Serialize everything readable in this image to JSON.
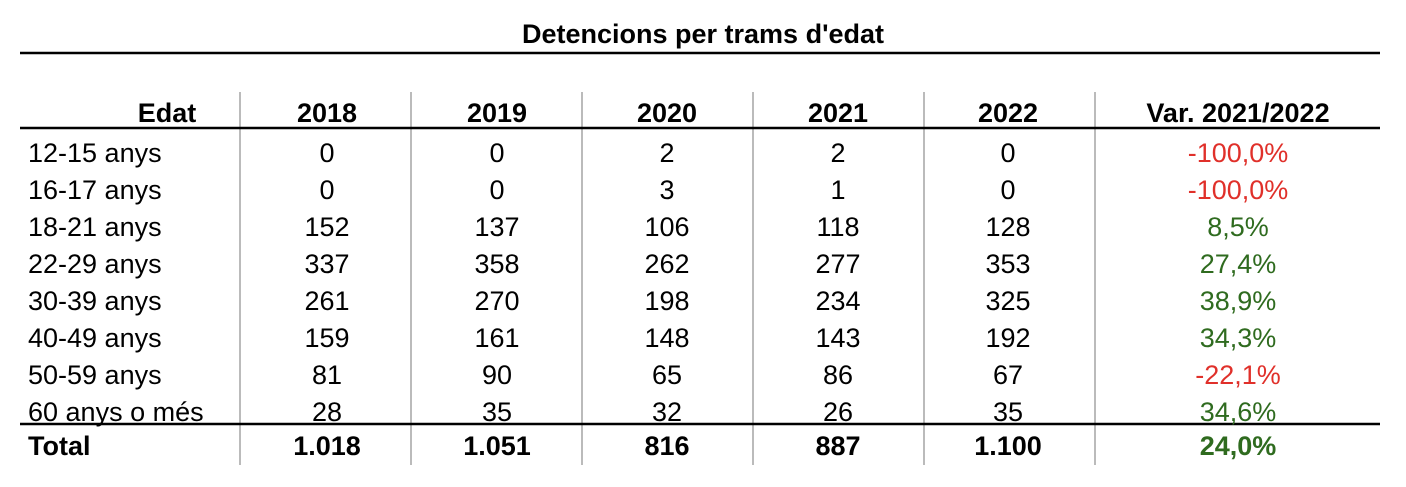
{
  "chart_data": {
    "type": "table",
    "title": "Detencions per trams d'edat",
    "columns": [
      "Edat",
      "2018",
      "2019",
      "2020",
      "2021",
      "2022",
      "Var. 2021/2022"
    ],
    "rows": [
      {
        "label": "12-15 anys",
        "values": [
          "0",
          "0",
          "2",
          "2",
          "0"
        ],
        "var": "-100,0%",
        "trend": "neg"
      },
      {
        "label": "16-17 anys",
        "values": [
          "0",
          "0",
          "3",
          "1",
          "0"
        ],
        "var": "-100,0%",
        "trend": "neg"
      },
      {
        "label": "18-21 anys",
        "values": [
          "152",
          "137",
          "106",
          "118",
          "128"
        ],
        "var": "8,5%",
        "trend": "pos"
      },
      {
        "label": "22-29 anys",
        "values": [
          "337",
          "358",
          "262",
          "277",
          "353"
        ],
        "var": "27,4%",
        "trend": "pos"
      },
      {
        "label": "30-39 anys",
        "values": [
          "261",
          "270",
          "198",
          "234",
          "325"
        ],
        "var": "38,9%",
        "trend": "pos"
      },
      {
        "label": "40-49 anys",
        "values": [
          "159",
          "161",
          "148",
          "143",
          "192"
        ],
        "var": "34,3%",
        "trend": "pos"
      },
      {
        "label": "50-59 anys",
        "values": [
          "81",
          "90",
          "65",
          "86",
          "67"
        ],
        "var": "-22,1%",
        "trend": "neg"
      },
      {
        "label": "60 anys o més",
        "values": [
          "28",
          "35",
          "32",
          "26",
          "35"
        ],
        "var": "34,6%",
        "trend": "pos"
      }
    ],
    "total": {
      "label": "Total",
      "values": [
        "1.018",
        "1.051",
        "816",
        "887",
        "1.100"
      ],
      "var": "24,0%",
      "trend": "pos"
    },
    "colors": {
      "negative": "#e0302a",
      "positive": "#2f6b1f"
    }
  }
}
